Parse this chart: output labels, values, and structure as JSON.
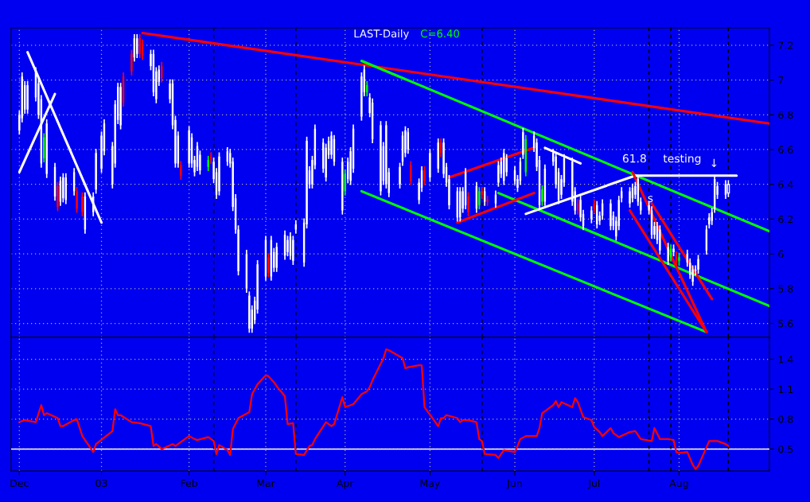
{
  "chart_data": [
    {
      "type": "candlestick",
      "title": "LAST-Daily",
      "subtitle": "C=6.40",
      "x": [
        "2002-12-03",
        "2002-12-04",
        "2002-12-05",
        "2002-12-06",
        "2002-12-09",
        "2002-12-10",
        "2002-12-11",
        "2002-12-12",
        "2002-12-13",
        "2002-12-16",
        "2002-12-17",
        "2002-12-18",
        "2002-12-19",
        "2002-12-20",
        "2002-12-23",
        "2002-12-24",
        "2002-12-26",
        "2002-12-27",
        "2002-12-30",
        "2002-12-31",
        "2003-01-02",
        "2003-01-03",
        "2003-01-06",
        "2003-01-07",
        "2003-01-08",
        "2003-01-09",
        "2003-01-10",
        "2003-01-13",
        "2003-01-14",
        "2003-01-15",
        "2003-01-16",
        "2003-01-17",
        "2003-01-20",
        "2003-01-21",
        "2003-01-22",
        "2003-01-23",
        "2003-01-24",
        "2003-01-27",
        "2003-01-28",
        "2003-01-29",
        "2003-01-30",
        "2003-01-31",
        "2003-02-03",
        "2003-02-04",
        "2003-02-05",
        "2003-02-06",
        "2003-02-07",
        "2003-02-10",
        "2003-02-11",
        "2003-02-12",
        "2003-02-13",
        "2003-02-14",
        "2003-02-17",
        "2003-02-18",
        "2003-02-19",
        "2003-02-20",
        "2003-02-21",
        "2003-02-24",
        "2003-02-25",
        "2003-02-26",
        "2003-02-27",
        "2003-02-28",
        "2003-03-03",
        "2003-03-04",
        "2003-03-05",
        "2003-03-06",
        "2003-03-07",
        "2003-03-10",
        "2003-03-11",
        "2003-03-12",
        "2003-03-13",
        "2003-03-14",
        "2003-03-17",
        "2003-03-18",
        "2003-03-19",
        "2003-03-20",
        "2003-03-21",
        "2003-03-24",
        "2003-03-25",
        "2003-03-26",
        "2003-03-27",
        "2003-03-28",
        "2003-03-31",
        "2003-04-01",
        "2003-04-02",
        "2003-04-03",
        "2003-04-04",
        "2003-04-07",
        "2003-04-08",
        "2003-04-09",
        "2003-04-10",
        "2003-04-11",
        "2003-04-14",
        "2003-04-15",
        "2003-04-16",
        "2003-04-17",
        "2003-04-21",
        "2003-04-22",
        "2003-04-23",
        "2003-04-24",
        "2003-04-25",
        "2003-04-28",
        "2003-04-29",
        "2003-04-30",
        "2003-05-02",
        "2003-05-05",
        "2003-05-06",
        "2003-05-07",
        "2003-05-08",
        "2003-05-09",
        "2003-05-12",
        "2003-05-13",
        "2003-05-14",
        "2003-05-15",
        "2003-05-16",
        "2003-05-19",
        "2003-05-20",
        "2003-05-21",
        "2003-05-22",
        "2003-05-23",
        "2003-05-26",
        "2003-05-27",
        "2003-05-28",
        "2003-05-29",
        "2003-05-30",
        "2003-06-02",
        "2003-06-03",
        "2003-06-04",
        "2003-06-05",
        "2003-06-06",
        "2003-06-09",
        "2003-06-10",
        "2003-06-11",
        "2003-06-12",
        "2003-06-13",
        "2003-06-16",
        "2003-06-17",
        "2003-06-18",
        "2003-06-19",
        "2003-06-20",
        "2003-06-23",
        "2003-06-24",
        "2003-06-25",
        "2003-06-26",
        "2003-06-27",
        "2003-06-30",
        "2003-07-01",
        "2003-07-02",
        "2003-07-03",
        "2003-07-04",
        "2003-07-07",
        "2003-07-08",
        "2003-07-09",
        "2003-07-10",
        "2003-07-11",
        "2003-07-14",
        "2003-07-15",
        "2003-07-16",
        "2003-07-17",
        "2003-07-18",
        "2003-07-21",
        "2003-07-22",
        "2003-07-23",
        "2003-07-24",
        "2003-07-25",
        "2003-07-28",
        "2003-07-29",
        "2003-07-30",
        "2003-07-31",
        "2003-08-01",
        "2003-08-04",
        "2003-08-05",
        "2003-08-06",
        "2003-08-07",
        "2003-08-08",
        "2003-08-11",
        "2003-08-12",
        "2003-08-13",
        "2003-08-14",
        "2003-08-15",
        "2003-08-18",
        "2003-08-19"
      ],
      "ohlc": [
        [
          6.8,
          6.82,
          6.69,
          6.71
        ],
        [
          7.02,
          7.04,
          6.76,
          6.78
        ],
        [
          6.97,
          6.99,
          6.81,
          6.83
        ],
        [
          6.97,
          6.99,
          6.81,
          6.83
        ],
        [
          7.05,
          7.07,
          6.88,
          6.9
        ],
        [
          6.98,
          7.0,
          6.78,
          6.8
        ],
        [
          6.89,
          6.91,
          6.5,
          6.52
        ],
        [
          6.67,
          6.69,
          6.53,
          6.55
        ],
        [
          6.75,
          6.77,
          6.44,
          6.46
        ],
        [
          6.5,
          6.52,
          6.31,
          6.33
        ],
        [
          6.39,
          6.41,
          6.25,
          6.27
        ],
        [
          6.42,
          6.44,
          6.28,
          6.3
        ],
        [
          6.44,
          6.46,
          6.3,
          6.32
        ],
        [
          6.44,
          6.46,
          6.29,
          6.31
        ],
        [
          6.47,
          6.49,
          6.34,
          6.36
        ],
        [
          6.36,
          6.38,
          6.24,
          6.26
        ],
        [
          6.33,
          6.35,
          6.22,
          6.24
        ],
        [
          6.33,
          6.35,
          6.12,
          6.14
        ],
        [
          6.33,
          6.35,
          6.22,
          6.24
        ],
        [
          6.58,
          6.6,
          6.35,
          6.37
        ],
        [
          6.68,
          6.7,
          6.47,
          6.49
        ],
        [
          6.75,
          6.77,
          6.57,
          6.59
        ],
        [
          6.62,
          6.64,
          6.38,
          6.4
        ],
        [
          6.86,
          6.88,
          6.5,
          6.52
        ],
        [
          6.96,
          6.98,
          6.75,
          6.77
        ],
        [
          6.96,
          6.98,
          6.72,
          6.74
        ],
        [
          7.02,
          7.04,
          6.85,
          6.87
        ],
        [
          7.15,
          7.17,
          7.03,
          7.05
        ],
        [
          7.24,
          7.26,
          7.11,
          7.13
        ],
        [
          7.24,
          7.26,
          7.13,
          7.15
        ],
        [
          7.24,
          7.26,
          7.13,
          7.15
        ],
        [
          7.21,
          7.23,
          7.12,
          7.14
        ],
        [
          7.15,
          7.17,
          7.06,
          7.08
        ],
        [
          7.15,
          7.17,
          6.91,
          6.93
        ],
        [
          7.05,
          7.07,
          6.87,
          6.89
        ],
        [
          7.06,
          7.08,
          6.97,
          6.99
        ],
        [
          7.08,
          7.1,
          6.99,
          7.01
        ],
        [
          6.98,
          7.0,
          6.87,
          6.89
        ],
        [
          6.98,
          7.0,
          6.72,
          6.74
        ],
        [
          6.77,
          6.79,
          6.5,
          6.52
        ],
        [
          6.68,
          6.7,
          6.5,
          6.52
        ],
        [
          6.51,
          6.53,
          6.43,
          6.45
        ],
        [
          6.71,
          6.73,
          6.5,
          6.52
        ],
        [
          6.67,
          6.69,
          6.5,
          6.52
        ],
        [
          6.54,
          6.56,
          6.45,
          6.47
        ],
        [
          6.62,
          6.64,
          6.48,
          6.5
        ],
        [
          6.57,
          6.59,
          6.46,
          6.48
        ],
        [
          6.54,
          6.56,
          6.48,
          6.5
        ],
        [
          6.56,
          6.58,
          6.52,
          6.54
        ],
        [
          6.53,
          6.55,
          6.41,
          6.43
        ],
        [
          6.47,
          6.49,
          6.32,
          6.34
        ],
        [
          6.56,
          6.58,
          6.34,
          6.36
        ],
        [
          6.59,
          6.61,
          6.51,
          6.53
        ],
        [
          6.58,
          6.6,
          6.5,
          6.52
        ],
        [
          6.53,
          6.55,
          6.25,
          6.27
        ],
        [
          6.32,
          6.34,
          6.12,
          6.14
        ],
        [
          6.14,
          6.16,
          5.88,
          5.9
        ],
        [
          6.0,
          6.02,
          5.78,
          5.8
        ],
        [
          5.76,
          5.78,
          5.55,
          5.57
        ],
        [
          5.68,
          5.7,
          5.55,
          5.57
        ],
        [
          5.73,
          5.75,
          5.6,
          5.62
        ],
        [
          5.94,
          5.96,
          5.66,
          5.68
        ],
        [
          6.08,
          6.1,
          5.85,
          5.87
        ],
        [
          5.98,
          6.0,
          5.87,
          5.89
        ],
        [
          6.08,
          6.1,
          5.85,
          5.87
        ],
        [
          6.01,
          6.03,
          5.9,
          5.92
        ],
        [
          6.04,
          6.06,
          5.9,
          5.92
        ],
        [
          6.11,
          6.13,
          5.97,
          5.99
        ],
        [
          6.08,
          6.1,
          5.99,
          6.01
        ],
        [
          6.1,
          6.12,
          5.97,
          5.99
        ],
        [
          6.08,
          6.1,
          5.94,
          5.96
        ],
        [
          6.17,
          6.19,
          6.12,
          6.14
        ],
        [
          6.18,
          6.2,
          5.93,
          5.95
        ],
        [
          6.65,
          6.67,
          6.15,
          6.17
        ],
        [
          6.48,
          6.5,
          6.38,
          6.4
        ],
        [
          6.54,
          6.56,
          6.38,
          6.4
        ],
        [
          6.72,
          6.74,
          6.49,
          6.51
        ],
        [
          6.64,
          6.66,
          6.47,
          6.49
        ],
        [
          6.61,
          6.63,
          6.42,
          6.44
        ],
        [
          6.65,
          6.67,
          6.55,
          6.57
        ],
        [
          6.68,
          6.7,
          6.55,
          6.57
        ],
        [
          6.66,
          6.68,
          6.51,
          6.53
        ],
        [
          6.53,
          6.55,
          6.23,
          6.25
        ],
        [
          6.46,
          6.48,
          6.34,
          6.36
        ],
        [
          6.53,
          6.55,
          6.41,
          6.43
        ],
        [
          6.59,
          6.61,
          6.4,
          6.42
        ],
        [
          6.72,
          6.74,
          6.47,
          6.49
        ],
        [
          7.02,
          7.04,
          6.77,
          6.79
        ],
        [
          7.06,
          7.08,
          6.91,
          6.93
        ],
        [
          6.97,
          6.99,
          6.91,
          6.93
        ],
        [
          6.9,
          6.92,
          6.79,
          6.81
        ],
        [
          6.87,
          6.89,
          6.64,
          6.66
        ],
        [
          6.74,
          6.76,
          6.34,
          6.36
        ],
        [
          6.62,
          6.64,
          6.4,
          6.42
        ],
        [
          6.74,
          6.76,
          6.38,
          6.4
        ],
        [
          6.47,
          6.49,
          6.33,
          6.35
        ],
        [
          6.5,
          6.52,
          6.38,
          6.4
        ],
        [
          6.68,
          6.7,
          6.51,
          6.53
        ],
        [
          6.71,
          6.73,
          6.56,
          6.58
        ],
        [
          6.7,
          6.72,
          6.58,
          6.6
        ],
        [
          6.51,
          6.53,
          6.4,
          6.42
        ],
        [
          6.41,
          6.43,
          6.29,
          6.31
        ],
        [
          6.48,
          6.5,
          6.36,
          6.38
        ],
        [
          6.48,
          6.5,
          6.4,
          6.42
        ],
        [
          6.58,
          6.6,
          6.42,
          6.44
        ],
        [
          6.64,
          6.66,
          6.47,
          6.49
        ],
        [
          6.64,
          6.66,
          6.56,
          6.58
        ],
        [
          6.64,
          6.66,
          6.44,
          6.46
        ],
        [
          6.5,
          6.52,
          6.39,
          6.41
        ],
        [
          6.43,
          6.45,
          6.26,
          6.28
        ],
        [
          6.36,
          6.38,
          6.19,
          6.21
        ],
        [
          6.36,
          6.38,
          6.19,
          6.21
        ],
        [
          6.36,
          6.38,
          6.24,
          6.26
        ],
        [
          6.47,
          6.49,
          6.26,
          6.28
        ],
        [
          6.33,
          6.35,
          6.22,
          6.24
        ],
        [
          6.39,
          6.41,
          6.24,
          6.26
        ],
        [
          6.36,
          6.38,
          6.26,
          6.28
        ],
        [
          6.36,
          6.38,
          6.32,
          6.34
        ],
        [
          6.36,
          6.38,
          6.28,
          6.3
        ],
        [
          6.31,
          6.33,
          6.28,
          6.3
        ],
        [
          6.34,
          6.36,
          6.27,
          6.29
        ],
        [
          6.51,
          6.53,
          6.39,
          6.41
        ],
        [
          6.53,
          6.55,
          6.44,
          6.46
        ],
        [
          6.58,
          6.6,
          6.4,
          6.42
        ],
        [
          6.55,
          6.57,
          6.45,
          6.47
        ],
        [
          6.48,
          6.5,
          6.4,
          6.42
        ],
        [
          6.43,
          6.45,
          6.36,
          6.38
        ],
        [
          6.53,
          6.55,
          6.4,
          6.42
        ],
        [
          6.7,
          6.72,
          6.55,
          6.57
        ],
        [
          6.66,
          6.68,
          6.45,
          6.47
        ],
        [
          6.68,
          6.7,
          6.59,
          6.61
        ],
        [
          6.64,
          6.66,
          6.48,
          6.5
        ],
        [
          6.54,
          6.56,
          6.26,
          6.28
        ],
        [
          6.37,
          6.39,
          6.28,
          6.3
        ],
        [
          6.49,
          6.51,
          6.28,
          6.3
        ],
        [
          6.58,
          6.6,
          6.51,
          6.53
        ],
        [
          6.56,
          6.58,
          6.38,
          6.4
        ],
        [
          6.47,
          6.49,
          6.29,
          6.31
        ],
        [
          6.43,
          6.45,
          6.32,
          6.34
        ],
        [
          6.55,
          6.57,
          6.39,
          6.41
        ],
        [
          6.53,
          6.55,
          6.28,
          6.3
        ],
        [
          6.36,
          6.38,
          6.23,
          6.25
        ],
        [
          6.29,
          6.31,
          6.23,
          6.25
        ],
        [
          6.31,
          6.33,
          6.19,
          6.21
        ],
        [
          6.23,
          6.25,
          6.14,
          6.16
        ],
        [
          6.25,
          6.27,
          6.18,
          6.2
        ],
        [
          6.29,
          6.31,
          6.24,
          6.26
        ],
        [
          6.28,
          6.3,
          6.15,
          6.17
        ],
        [
          6.22,
          6.24,
          6.17,
          6.19
        ],
        [
          6.29,
          6.31,
          6.2,
          6.22
        ],
        [
          6.29,
          6.31,
          6.14,
          6.16
        ],
        [
          6.22,
          6.24,
          6.14,
          6.16
        ],
        [
          6.19,
          6.21,
          6.08,
          6.1
        ],
        [
          6.31,
          6.33,
          6.14,
          6.16
        ],
        [
          6.36,
          6.38,
          6.3,
          6.32
        ],
        [
          6.36,
          6.38,
          6.27,
          6.29
        ],
        [
          6.38,
          6.4,
          6.3,
          6.32
        ],
        [
          6.39,
          6.41,
          6.32,
          6.34
        ],
        [
          6.43,
          6.45,
          6.28,
          6.3
        ],
        [
          6.3,
          6.32,
          6.23,
          6.25
        ],
        [
          6.28,
          6.3,
          6.23,
          6.25
        ],
        [
          6.25,
          6.27,
          6.09,
          6.11
        ],
        [
          6.16,
          6.18,
          6.09,
          6.11
        ],
        [
          6.16,
          6.18,
          6.06,
          6.08
        ],
        [
          6.14,
          6.16,
          6.0,
          6.02
        ],
        [
          6.04,
          6.06,
          5.94,
          5.96
        ],
        [
          6.03,
          6.05,
          5.96,
          5.98
        ],
        [
          6.03,
          6.05,
          5.99,
          6.01
        ],
        [
          5.99,
          6.01,
          5.93,
          5.95
        ],
        [
          5.98,
          6.0,
          5.94,
          5.96
        ],
        [
          6.0,
          6.02,
          5.93,
          5.95
        ],
        [
          5.95,
          5.97,
          5.86,
          5.88
        ],
        [
          5.91,
          5.93,
          5.82,
          5.84
        ],
        [
          5.91,
          5.93,
          5.88,
          5.9
        ],
        [
          5.97,
          5.99,
          5.89,
          5.91
        ],
        [
          6.14,
          6.16,
          6.0,
          6.02
        ],
        [
          6.21,
          6.23,
          6.15,
          6.17
        ],
        [
          6.24,
          6.26,
          6.17,
          6.19
        ],
        [
          6.43,
          6.45,
          6.24,
          6.26
        ],
        [
          6.39,
          6.41,
          6.32,
          6.34
        ],
        [
          6.4,
          6.42,
          6.32,
          6.34
        ],
        [
          6.35,
          6.42,
          6.33,
          6.4
        ]
      ],
      "colors": [
        "#ffffff",
        "#ffffff",
        "#ffffff",
        "#ffffff",
        "#ffffff",
        "#ffffff",
        "#ffffff",
        "#00ff00",
        "#ffffff",
        "#ffffff",
        "#ff0000",
        "#ffffff",
        "#ffffff",
        "#ffffff",
        "#ffffff",
        "#ff0000",
        "#ff0000",
        "#ffffff",
        "#ffffff",
        "#ffffff",
        "#ffffff",
        "#ffffff",
        "#ffffff",
        "#ffffff",
        "#ffffff",
        "#ffffff",
        "#ff0000",
        "#ff0000",
        "#ffffff",
        "#ffffff",
        "#ff0000",
        "#ff0000",
        "#ffffff",
        "#ffffff",
        "#ffffff",
        "#ffffff",
        "#ff0000",
        "#ffffff",
        "#ffffff",
        "#ffffff",
        "#ffffff",
        "#ff0000",
        "#ffffff",
        "#ffffff",
        "#ffffff",
        "#ffffff",
        "#ffffff",
        "#00ff00",
        "#ff0000",
        "#ffffff",
        "#ffffff",
        "#ffffff",
        "#ffffff",
        "#ffffff",
        "#ffffff",
        "#ffffff",
        "#ffffff",
        "#ffffff",
        "#ffffff",
        "#ffffff",
        "#ffffff",
        "#ffffff",
        "#ffffff",
        "#ff0000",
        "#ffffff",
        "#ffffff",
        "#ffffff",
        "#ffffff",
        "#ffffff",
        "#ffffff",
        "#ffffff",
        "#ffffff",
        "#ffffff",
        "#ffffff",
        "#ffffff",
        "#ffffff",
        "#ffffff",
        "#ffffff",
        "#ffffff",
        "#ffffff",
        "#ffffff",
        "#ffffff",
        "#ffffff",
        "#00ff00",
        "#ffffff",
        "#ffffff",
        "#ffffff",
        "#ffffff",
        "#ffffff",
        "#00ff00",
        "#ffffff",
        "#ffffff",
        "#ffffff",
        "#ffffff",
        "#ffffff",
        "#ffffff",
        "#ffffff",
        "#ffffff",
        "#ffffff",
        "#ffffff",
        "#ff0000",
        "#ffffff",
        "#ffffff",
        "#ff0000",
        "#ffffff",
        "#ffffff",
        "#ff0000",
        "#ffffff",
        "#ffffff",
        "#ffffff",
        "#ffffff",
        "#ffffff",
        "#ffffff",
        "#ffffff",
        "#ff0000",
        "#ffffff",
        "#00ff00",
        "#ff0000",
        "#ffffff",
        "#ff0000",
        "#ffffff",
        "#ffffff",
        "#ffffff",
        "#ffffff",
        "#ffffff",
        "#ffffff",
        "#ffffff",
        "#ffffff",
        "#ffffff",
        "#00ff00",
        "#ffffff",
        "#ffffff",
        "#ffffff",
        "#00ff00",
        "#ffffff",
        "#ffffff",
        "#ffffff",
        "#ffffff",
        "#ffffff",
        "#ffffff",
        "#ffffff",
        "#ffffff",
        "#ff0000",
        "#ffffff",
        "#ffffff",
        "#ffffff",
        "#ff0000",
        "#ffffff",
        "#ffffff",
        "#ffffff",
        "#ffffff",
        "#ffffff",
        "#ffffff",
        "#ffffff",
        "#ffffff",
        "#ffffff",
        "#ffffff",
        "#ffffff",
        "#ffffff",
        "#ffffff",
        "#ffffff",
        "#ffffff",
        "#ffffff",
        "#ffffff",
        "#ffffff",
        "#ffffff",
        "#00ff00",
        "#ffffff",
        "#ff0000",
        "#00ff00",
        "#ffffff",
        "#ffffff",
        "#ffffff",
        "#ffffff",
        "#ffffff",
        "#ffffff",
        "#ffffff",
        "#ffffff",
        "#ffffff",
        "#ffffff",
        "#ffffff",
        "#ffffff"
      ],
      "series": [
        {
          "type": "line",
          "color": "#ff0000",
          "x": [
            "2003-01-17",
            "2003-09-03"
          ],
          "values": [
            7.27,
            6.75
          ]
        },
        {
          "type": "line",
          "color": "#00ff00",
          "x": [
            "2003-04-07",
            "2003-09-03"
          ],
          "values": [
            7.11,
            6.13
          ]
        },
        {
          "type": "line",
          "color": "#00ff00",
          "x": [
            "2003-05-27",
            "2003-09-03"
          ],
          "values": [
            6.35,
            5.7
          ]
        },
        {
          "type": "line",
          "color": "#00ff00",
          "x": [
            "2003-04-07",
            "2003-08-11"
          ],
          "values": [
            6.36,
            5.55
          ]
        },
        {
          "type": "line",
          "color": "#ffffff",
          "x": [
            "2002-12-06",
            "2003-01-02"
          ],
          "values": [
            7.16,
            6.18
          ]
        },
        {
          "type": "line",
          "color": "#ffffff",
          "x": [
            "2002-12-03",
            "2002-12-16"
          ],
          "values": [
            6.47,
            6.92
          ]
        },
        {
          "type": "line",
          "color": "#ffffff",
          "x": [
            "2003-06-06",
            "2003-07-16",
            "2003-08-22"
          ],
          "values": [
            6.23,
            6.45,
            6.45
          ]
        },
        {
          "type": "line",
          "color": "#ffffff",
          "x": [
            "2003-06-13",
            "2003-06-26"
          ],
          "values": [
            6.61,
            6.52
          ]
        },
        {
          "type": "line",
          "color": "#ff0000",
          "x": [
            "2003-05-09",
            "2003-06-09"
          ],
          "values": [
            6.44,
            6.61
          ]
        },
        {
          "type": "line",
          "color": "#ff0000",
          "x": [
            "2003-05-12",
            "2003-06-09"
          ],
          "values": [
            6.18,
            6.35
          ]
        },
        {
          "type": "line",
          "color": "#ff0000",
          "x": [
            "2003-07-15",
            "2003-08-11"
          ],
          "values": [
            6.47,
            5.55
          ]
        },
        {
          "type": "line",
          "color": "#ff0000",
          "x": [
            "2003-07-14",
            "2003-08-11"
          ],
          "values": [
            6.25,
            5.55
          ]
        },
        {
          "type": "line",
          "color": "#ff0000",
          "x": [
            "2003-07-22",
            "2003-08-13"
          ],
          "values": [
            6.29,
            5.74
          ]
        }
      ],
      "xlim": [
        "2002-11-30",
        "2003-09-03"
      ],
      "xticks": [
        {
          "value": "2002-12-03",
          "label": null
        },
        {
          "value": "2003-01-02",
          "label": null
        },
        {
          "value": "2003-02-03",
          "label": null
        },
        {
          "value": "2003-03-03",
          "label": null
        },
        {
          "value": "2003-04-01",
          "label": null
        },
        {
          "value": "2003-05-02",
          "label": null
        },
        {
          "value": "2003-06-02",
          "label": null
        },
        {
          "value": "2003-07-01",
          "label": null
        },
        {
          "value": "2003-08-01",
          "label": null
        }
      ],
      "ylim": [
        5.52,
        7.3
      ],
      "yticks": [
        5.6,
        5.8,
        6,
        6.2,
        6.4,
        6.6,
        6.8,
        7,
        7.2
      ],
      "grid": true,
      "tick_labels": "y",
      "ref_lines": [
        {
          "axis": "x",
          "value": "2003-02-12",
          "color": "#000000",
          "line_style": "dashed"
        },
        {
          "axis": "x",
          "value": "2003-03-14",
          "color": "#000000",
          "line_style": "dashed"
        },
        {
          "axis": "x",
          "value": "2003-05-21",
          "color": "#000000",
          "line_style": "dashed"
        },
        {
          "axis": "x",
          "value": "2003-07-21",
          "color": "#000000",
          "line_style": "dashed"
        },
        {
          "axis": "x",
          "value": "2003-07-29",
          "color": "#000000",
          "line_style": "dashed"
        },
        {
          "axis": "x",
          "value": "2003-08-19",
          "color": "#000000",
          "line_style": "dashed"
        }
      ],
      "annotations": [
        "61.8",
        "testing",
        "↓",
        "s"
      ]
    },
    {
      "type": "line",
      "series": [
        {
          "color": "#ff0000",
          "x": [
            "2002-12-03",
            "2002-12-05",
            "2002-12-09",
            "2002-12-11",
            "2002-12-12",
            "2002-12-13",
            "2002-12-17",
            "2002-12-18",
            "2002-12-19",
            "2002-12-23",
            "2002-12-24",
            "2002-12-26",
            "2002-12-30",
            "2002-12-31",
            "2003-01-06",
            "2003-01-07",
            "2003-01-08",
            "2003-01-09",
            "2003-01-13",
            "2003-01-16",
            "2003-01-20",
            "2003-01-21",
            "2003-01-22",
            "2003-01-24",
            "2003-01-28",
            "2003-01-29",
            "2003-01-30",
            "2003-02-03",
            "2003-02-05",
            "2003-02-06",
            "2003-02-10",
            "2003-02-12",
            "2003-02-13",
            "2003-02-14",
            "2003-02-17",
            "2003-02-18",
            "2003-02-19",
            "2003-02-21",
            "2003-02-25",
            "2003-02-26",
            "2003-02-28",
            "2003-03-03",
            "2003-03-04",
            "2003-03-06",
            "2003-03-07",
            "2003-03-10",
            "2003-03-11",
            "2003-03-13",
            "2003-03-14",
            "2003-03-17",
            "2003-03-19",
            "2003-03-20",
            "2003-03-21",
            "2003-03-25",
            "2003-03-27",
            "2003-03-28",
            "2003-03-31",
            "2003-04-01",
            "2003-04-03",
            "2003-04-04",
            "2003-04-07",
            "2003-04-09",
            "2003-04-10",
            "2003-04-11",
            "2003-04-15",
            "2003-04-16",
            "2003-04-17",
            "2003-04-22",
            "2003-04-23",
            "2003-04-24",
            "2003-04-28",
            "2003-04-29",
            "2003-04-30",
            "2003-05-05",
            "2003-05-06",
            "2003-05-07",
            "2003-05-08",
            "2003-05-12",
            "2003-05-13",
            "2003-05-14",
            "2003-05-16",
            "2003-05-19",
            "2003-05-20",
            "2003-05-21",
            "2003-05-22",
            "2003-05-26",
            "2003-05-27",
            "2003-05-28",
            "2003-05-29",
            "2003-06-02",
            "2003-06-03",
            "2003-06-04",
            "2003-06-06",
            "2003-06-10",
            "2003-06-11",
            "2003-06-12",
            "2003-06-16",
            "2003-06-17",
            "2003-06-18",
            "2003-06-19",
            "2003-06-23",
            "2003-06-24",
            "2003-06-25",
            "2003-06-27",
            "2003-06-30",
            "2003-07-01",
            "2003-07-03",
            "2003-07-04",
            "2003-07-07",
            "2003-07-08",
            "2003-07-10",
            "2003-07-14",
            "2003-07-16",
            "2003-07-18",
            "2003-07-22",
            "2003-07-23",
            "2003-07-25",
            "2003-07-28",
            "2003-07-30",
            "2003-07-31",
            "2003-08-01",
            "2003-08-04",
            "2003-08-06",
            "2003-08-07",
            "2003-08-08",
            "2003-08-12",
            "2003-08-13",
            "2003-08-15",
            "2003-08-18",
            "2003-08-19"
          ],
          "values": [
            0.77,
            0.79,
            0.77,
            0.94,
            0.84,
            0.86,
            0.81,
            0.73,
            0.73,
            0.79,
            0.8,
            0.63,
            0.47,
            0.55,
            0.68,
            0.9,
            0.84,
            0.84,
            0.77,
            0.76,
            0.73,
            0.53,
            0.55,
            0.5,
            0.55,
            0.53,
            0.55,
            0.63,
            0.6,
            0.59,
            0.62,
            0.58,
            0.45,
            0.54,
            0.49,
            0.44,
            0.7,
            0.81,
            0.87,
            1.05,
            1.15,
            1.24,
            1.23,
            1.17,
            1.13,
            1.03,
            0.75,
            0.76,
            0.45,
            0.44,
            0.53,
            0.54,
            0.6,
            0.77,
            0.73,
            0.75,
            1.02,
            0.92,
            0.94,
            0.95,
            1.05,
            1.08,
            1.12,
            1.19,
            1.41,
            1.5,
            1.49,
            1.41,
            1.31,
            1.32,
            1.34,
            1.34,
            0.92,
            0.73,
            0.81,
            0.81,
            0.84,
            0.81,
            0.77,
            0.79,
            0.79,
            0.77,
            0.6,
            0.58,
            0.45,
            0.44,
            0.41,
            0.45,
            0.49,
            0.47,
            0.53,
            0.6,
            0.63,
            0.63,
            0.71,
            0.86,
            0.94,
            0.98,
            0.92,
            0.97,
            0.92,
            1.01,
            0.97,
            0.82,
            0.79,
            0.72,
            0.67,
            0.63,
            0.71,
            0.66,
            0.62,
            0.67,
            0.68,
            0.6,
            0.58,
            0.71,
            0.6,
            0.6,
            0.59,
            0.47,
            0.46,
            0.47,
            0.34,
            0.3,
            0.33,
            0.58,
            0.58,
            0.58,
            0.55,
            0.53
          ]
        }
      ],
      "xlim": [
        "2002-11-30",
        "2003-09-03"
      ],
      "xticks": [
        {
          "value": "2002-12-03",
          "label": "Dec"
        },
        {
          "value": "2003-01-02",
          "label": "03"
        },
        {
          "value": "2003-02-03",
          "label": "Feb"
        },
        {
          "value": "2003-03-03",
          "label": "Mar"
        },
        {
          "value": "2003-04-01",
          "label": "Apr"
        },
        {
          "value": "2003-05-02",
          "label": "May"
        },
        {
          "value": "2003-06-02",
          "label": "Jun"
        },
        {
          "value": "2003-07-01",
          "label": "Jul"
        },
        {
          "value": "2003-08-01",
          "label": "Aug"
        }
      ],
      "ylim": [
        0.28,
        1.62
      ],
      "yticks": [
        0.5,
        0.8,
        1.1,
        1.4
      ],
      "grid": true,
      "ref_lines": [
        {
          "axis": "y",
          "value": 0.5,
          "color": "#ffffff",
          "line_style": "solid"
        },
        {
          "axis": "x",
          "value": "2003-02-12",
          "color": "#000000",
          "line_style": "dashed"
        },
        {
          "axis": "x",
          "value": "2003-03-14",
          "color": "#000000",
          "line_style": "dashed"
        },
        {
          "axis": "x",
          "value": "2003-05-21",
          "color": "#000000",
          "line_style": "dashed"
        },
        {
          "axis": "x",
          "value": "2003-07-21",
          "color": "#000000",
          "line_style": "dashed"
        },
        {
          "axis": "x",
          "value": "2003-07-29",
          "color": "#000000",
          "line_style": "dashed"
        },
        {
          "axis": "x",
          "value": "2003-08-19",
          "color": "#000000",
          "line_style": "dashed"
        }
      ]
    }
  ]
}
